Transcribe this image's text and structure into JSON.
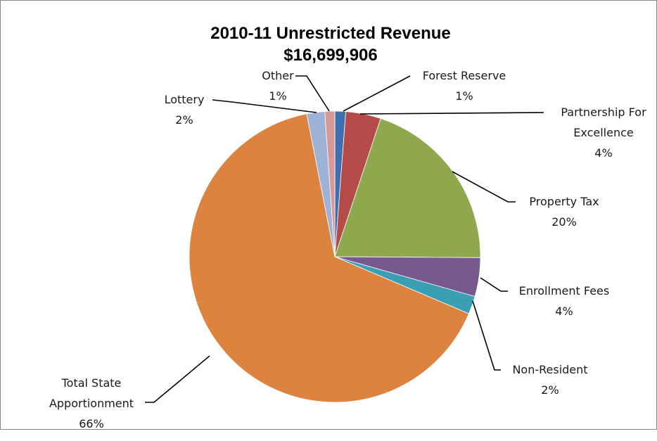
{
  "chart_data": {
    "type": "pie",
    "title": "2010-11 Unrestricted Revenue",
    "subtitle": "$16,699,906",
    "slices": [
      {
        "label_lines": [
          "Forest Reserve"
        ],
        "pct_label": "1%",
        "value": 1.2,
        "color": "#3F6FB0"
      },
      {
        "label_lines": [
          "Partnership For",
          "Excellence"
        ],
        "pct_label": "4%",
        "value": 3.9,
        "color": "#B44B48"
      },
      {
        "label_lines": [
          "Property Tax"
        ],
        "pct_label": "20%",
        "value": 20.0,
        "color": "#8DA84D"
      },
      {
        "label_lines": [
          "Enrollment Fees"
        ],
        "pct_label": "4%",
        "value": 4.3,
        "color": "#75598F"
      },
      {
        "label_lines": [
          "Non-Resident"
        ],
        "pct_label": "2%",
        "value": 2.0,
        "color": "#3B9FB4"
      },
      {
        "label_lines": [
          "Total State",
          "Apportionment"
        ],
        "pct_label": "66%",
        "value": 65.5,
        "color": "#DC843F"
      },
      {
        "label_lines": [
          "Lottery"
        ],
        "pct_label": "2%",
        "value": 2.0,
        "color": "#9EB2D8"
      },
      {
        "label_lines": [
          "Other"
        ],
        "pct_label": "1%",
        "value": 1.1,
        "color": "#D79896"
      }
    ]
  }
}
